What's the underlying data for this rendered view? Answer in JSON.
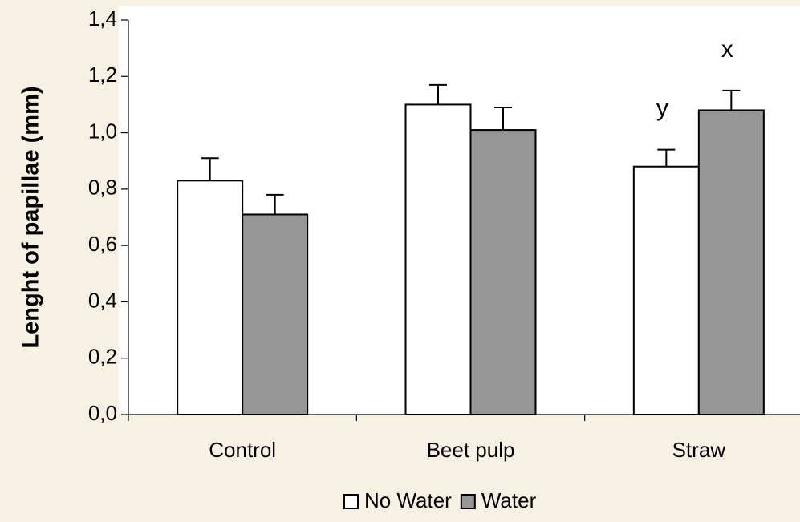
{
  "chart_data": {
    "type": "bar",
    "y_label": "Lenght of papillae (mm)",
    "categories": [
      "Control",
      "Beet pulp",
      "Straw"
    ],
    "series": [
      {
        "name": "No Water",
        "color": "#ffffff",
        "values": [
          0.83,
          1.1,
          0.88
        ],
        "errors": [
          0.08,
          0.07,
          0.06
        ]
      },
      {
        "name": "Water",
        "color": "#969696",
        "values": [
          0.71,
          1.01,
          1.08
        ],
        "errors": [
          0.07,
          0.08,
          0.07
        ]
      }
    ],
    "annotations": [
      {
        "text": "y",
        "series": 0,
        "category": 2
      },
      {
        "text": "x",
        "series": 1,
        "category": 2
      }
    ],
    "ylim": [
      0,
      1.4
    ],
    "yticks": [
      {
        "value": 0,
        "label": "0,0"
      },
      {
        "value": 0.2,
        "label": "0,2"
      },
      {
        "value": 0.4,
        "label": "0,4"
      },
      {
        "value": 0.6,
        "label": "0,6"
      },
      {
        "value": 0.8,
        "label": "0,8"
      },
      {
        "value": 1.0,
        "label": "1,0"
      },
      {
        "value": 1.2,
        "label": "1,2"
      },
      {
        "value": 1.4,
        "label": "1,4"
      }
    ],
    "legend": "bottom"
  }
}
